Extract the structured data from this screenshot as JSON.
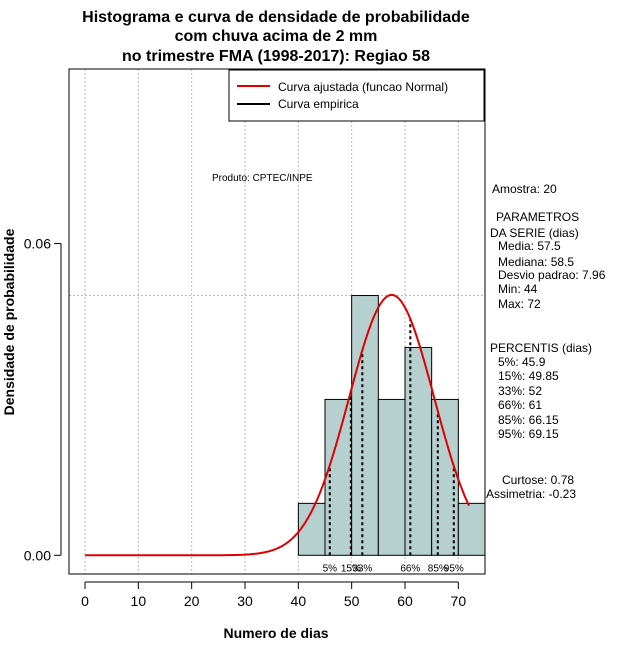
{
  "chart_data": {
    "type": "histogram",
    "title_lines": [
      "Histograma e curva de densidade de probabilidade",
      "com chuva acima de 2 mm",
      "no trimestre FMA (1998-2017): Regiao 58"
    ],
    "xlabel": "Numero de dias",
    "ylabel": "Densidade de probabilidade",
    "xlim": [
      -3,
      75
    ],
    "ylim": [
      -0.0036,
      0.0936
    ],
    "x_ticks": [
      0,
      10,
      20,
      30,
      40,
      50,
      60,
      70
    ],
    "y_ticks": [
      0.0,
      0.06
    ],
    "y_tick_labels": [
      "0.00",
      "0.06"
    ],
    "grid": true,
    "bins": [
      {
        "start": 40,
        "end": 45,
        "density": 0.01
      },
      {
        "start": 45,
        "end": 50,
        "density": 0.03
      },
      {
        "start": 50,
        "end": 55,
        "density": 0.05
      },
      {
        "start": 55,
        "end": 60,
        "density": 0.03
      },
      {
        "start": 60,
        "end": 65,
        "density": 0.04
      },
      {
        "start": 65,
        "end": 70,
        "density": 0.03
      },
      {
        "start": 70,
        "end": 75,
        "density": 0.01
      }
    ],
    "reference_line_y": 0.05,
    "normal_fit": {
      "mean": 57.5,
      "sd": 7.96,
      "x_from": 0,
      "x_to": 72
    },
    "percentile_lines": [
      {
        "label": "5%",
        "x": 45.9
      },
      {
        "label": "15%",
        "x": 49.85
      },
      {
        "label": "33%",
        "x": 52
      },
      {
        "label": "66%",
        "x": 61
      },
      {
        "label": "85%",
        "x": 66.15
      },
      {
        "label": "95%",
        "x": 69.15
      }
    ],
    "legend": {
      "position": "top-right",
      "entries": [
        {
          "label": "Curva ajustada (funcao Normal)",
          "color": "#e00000"
        },
        {
          "label": "Curva empirica",
          "color": "#000000"
        }
      ]
    },
    "colors": {
      "bar_fill": "#b6cfcf",
      "fit_curve": "#e00000",
      "grid": "#b8b8b8"
    }
  },
  "annotations": {
    "product": "Produto: CPTEC/INPE",
    "sample": "Amostra: 20",
    "params_header_1": "PARAMETROS",
    "params_header_2": "DA SERIE (dias)",
    "params": [
      "Media: 57.5",
      "Mediana: 58.5",
      "Desvio padrao: 7.96",
      "Min: 44",
      "Max: 72"
    ],
    "percentiles_header": "PERCENTIS (dias)",
    "percentiles": [
      "5%: 45.9",
      "15%: 49.85",
      "33%: 52",
      "66%: 61",
      "85%: 66.15",
      "95%: 69.15"
    ],
    "kurtosis": "Curtose: 0.78",
    "skewness": "Assimetria: -0.23"
  }
}
